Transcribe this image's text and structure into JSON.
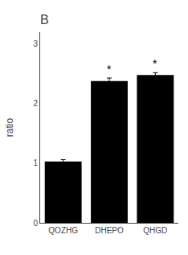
{
  "chart_data": {
    "type": "bar",
    "title": "B",
    "ylabel": "ratio",
    "categories": [
      "QOZHG",
      "DHEPO",
      "QHGD"
    ],
    "values": [
      1.03,
      2.38,
      2.48
    ],
    "errors": [
      0.03,
      0.05,
      0.04
    ],
    "color": "#000000",
    "ylim": [
      0,
      3.2
    ],
    "yticks": [
      0,
      1,
      2,
      3
    ],
    "grid": false,
    "annotations": [
      {
        "x": "DHEPO",
        "text": "*"
      },
      {
        "x": "QHGD",
        "text": "*"
      }
    ]
  }
}
